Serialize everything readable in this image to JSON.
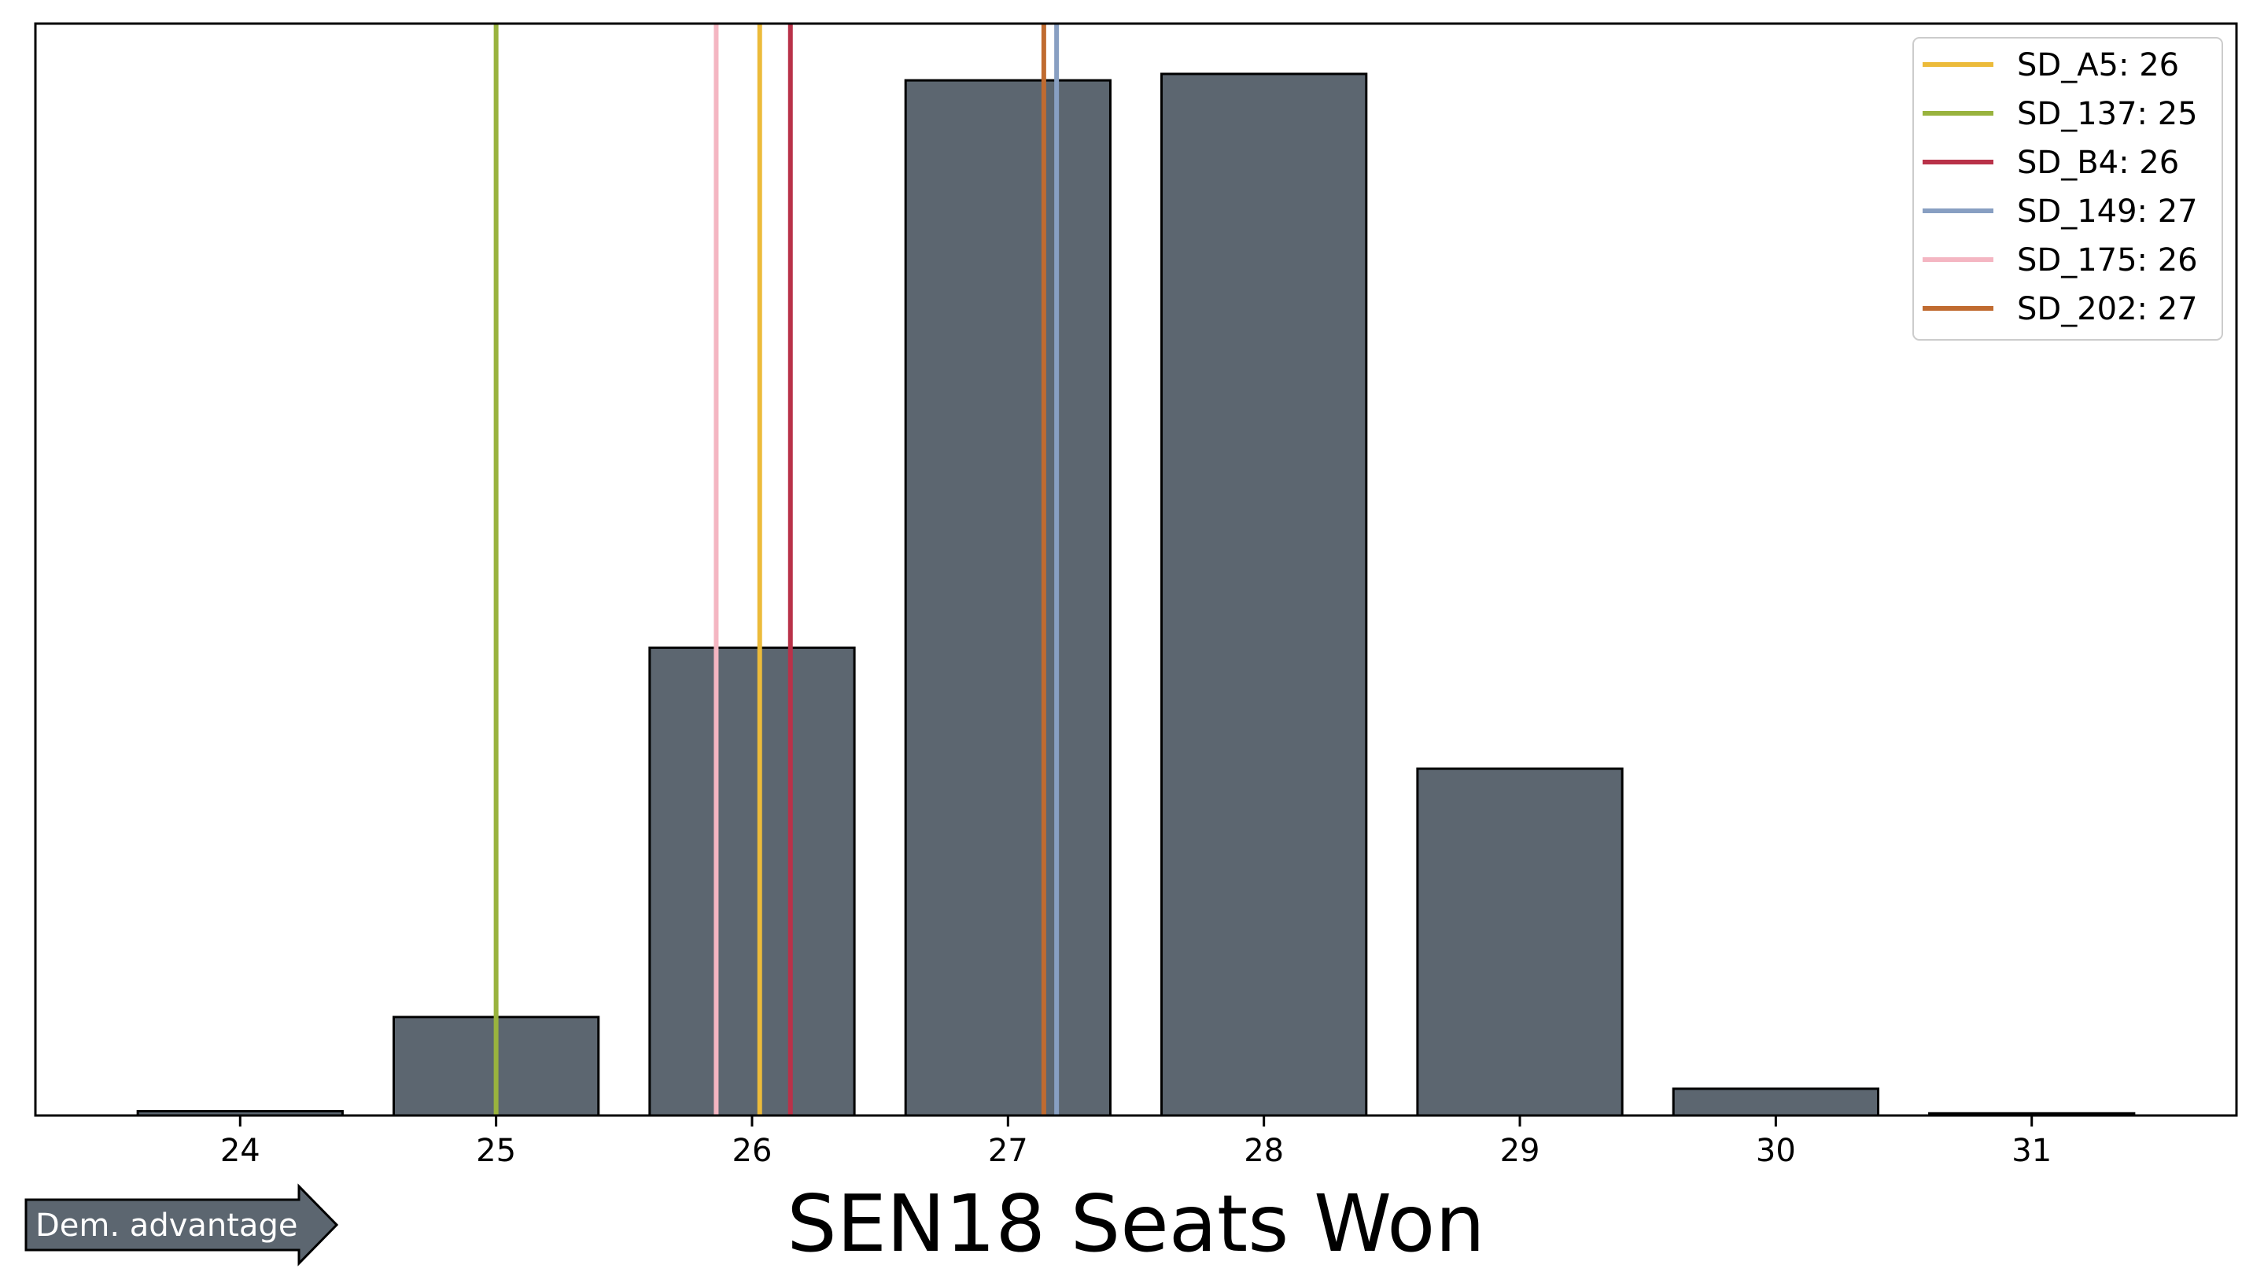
{
  "chart_data": {
    "type": "bar",
    "title": "",
    "xlabel": "SEN18 Seats Won",
    "ylabel": "",
    "categories": [
      24,
      25,
      26,
      27,
      28,
      29,
      30,
      31
    ],
    "values": [
      0.004,
      0.092,
      0.437,
      0.967,
      0.973,
      0.324,
      0.025,
      0.002
    ],
    "xlim": [
      23.2,
      31.8
    ],
    "ylim": [
      0,
      1.02
    ],
    "bar_color": "#5c6670",
    "bar_edge_color": "#000000",
    "y_ticks_shown": false,
    "grid": false,
    "legend_position": "top-right",
    "reference_lines": [
      {
        "name": "SD_A5",
        "value": 26,
        "label": "SD_A5: 26",
        "x": 26.03,
        "color": "#ecbb3a"
      },
      {
        "name": "SD_137",
        "value": 25,
        "label": "SD_137: 25",
        "x": 25.0,
        "color": "#99b33e"
      },
      {
        "name": "SD_B4",
        "value": 26,
        "label": "SD_B4: 26",
        "x": 26.15,
        "color": "#b93249"
      },
      {
        "name": "SD_149",
        "value": 27,
        "label": "SD_149: 27",
        "x": 27.19,
        "color": "#889fc2"
      },
      {
        "name": "SD_175",
        "value": 26,
        "label": "SD_175: 26",
        "x": 25.86,
        "color": "#f4b6c2"
      },
      {
        "name": "SD_202",
        "value": 27,
        "label": "SD_202: 27",
        "x": 27.14,
        "color": "#c06b30"
      }
    ]
  },
  "annotation": {
    "arrow_label": "Dem. advantage",
    "arrow_color": "#5c6670"
  }
}
